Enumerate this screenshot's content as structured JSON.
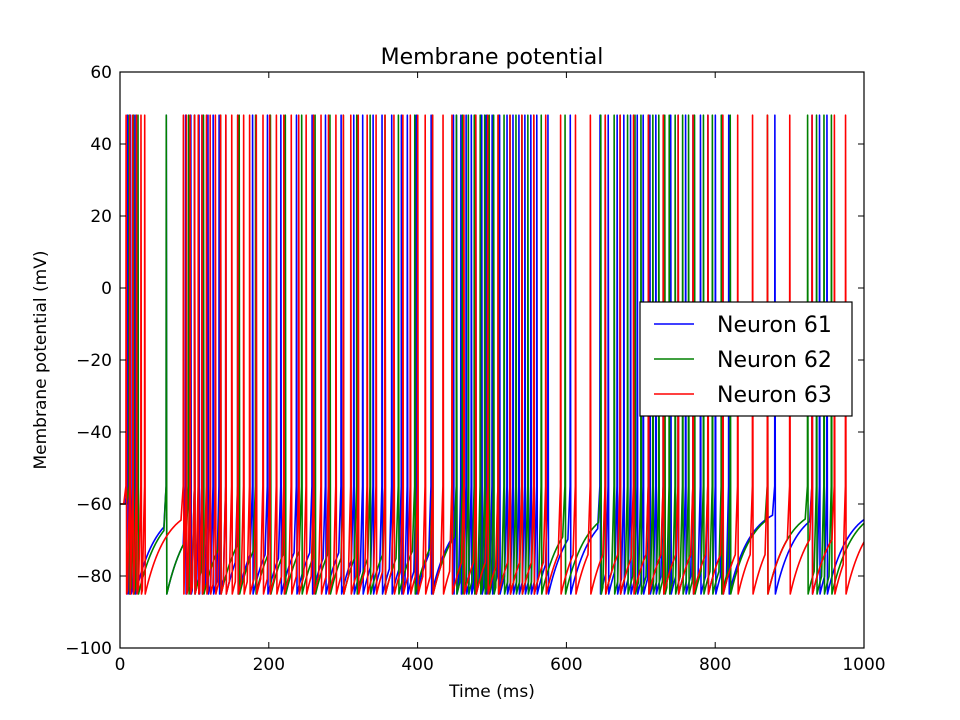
{
  "chart_data": {
    "type": "line",
    "title": "Membrane potential",
    "xlabel": "Time (ms)",
    "ylabel": "Membrane potential (mV)",
    "xlim": [
      0,
      1000
    ],
    "ylim": [
      -100,
      60
    ],
    "xticks": [
      "0",
      "200",
      "400",
      "600",
      "800",
      "1000"
    ],
    "yticks": [
      "60",
      "40",
      "20",
      "0",
      "−20",
      "−40",
      "−60",
      "−80",
      "−100"
    ],
    "grid": false,
    "legend_position": "center-right",
    "resting_potential": -60,
    "spike_peak": 48,
    "spike_trough": -85,
    "series": [
      {
        "name": "Neuron 61",
        "color": "#0000ff",
        "spike_times": [
          10,
          14,
          20,
          62,
          88,
          95,
          100,
          106,
          110,
          118,
          125,
          133,
          142,
          158,
          178,
          198,
          216,
          237,
          258,
          276,
          297,
          314,
          326,
          340,
          352,
          365,
          378,
          386,
          398,
          418,
          448,
          452,
          458,
          465,
          472,
          478,
          486,
          492,
          500,
          510,
          520,
          528,
          536,
          544,
          552,
          560,
          575,
          605,
          645,
          656,
          668,
          677,
          686,
          695,
          703,
          712,
          720,
          730,
          740,
          750,
          760,
          770,
          780,
          790,
          800,
          810,
          818,
          880,
          930,
          940,
          950
        ]
      },
      {
        "name": "Neuron 62",
        "color": "#008000",
        "spike_times": [
          12,
          18,
          24,
          62,
          92,
          100,
          112,
          135,
          160,
          182,
          202,
          222,
          244,
          262,
          282,
          300,
          318,
          336,
          356,
          374,
          396,
          420,
          452,
          460,
          468,
          476,
          484,
          490,
          496,
          502,
          508,
          516,
          524,
          532,
          540,
          548,
          556,
          566,
          598,
          646,
          652,
          664,
          672,
          682,
          692,
          700,
          710,
          716,
          724,
          732,
          738,
          746,
          756,
          764,
          772,
          784,
          796,
          808,
          820,
          870,
          924,
          936,
          946,
          956
        ]
      },
      {
        "name": "Neuron 63",
        "color": "#ff0000",
        "spike_times": [
          8,
          13,
          17,
          22,
          28,
          33,
          85,
          89,
          94,
          100,
          105,
          110,
          116,
          121,
          128,
          135,
          142,
          150,
          158,
          166,
          174,
          183,
          192,
          201,
          210,
          220,
          230,
          240,
          250,
          260,
          270,
          280,
          290,
          300,
          310,
          320,
          332,
          344,
          356,
          368,
          380,
          390,
          400,
          410,
          420,
          434,
          446,
          462,
          478,
          494,
          508,
          524,
          540,
          556,
          572,
          592,
          612,
          632,
          652,
          672,
          690,
          710,
          730,
          750,
          770,
          790,
          810,
          830,
          850,
          870,
          900,
          930,
          960,
          975
        ]
      }
    ]
  }
}
